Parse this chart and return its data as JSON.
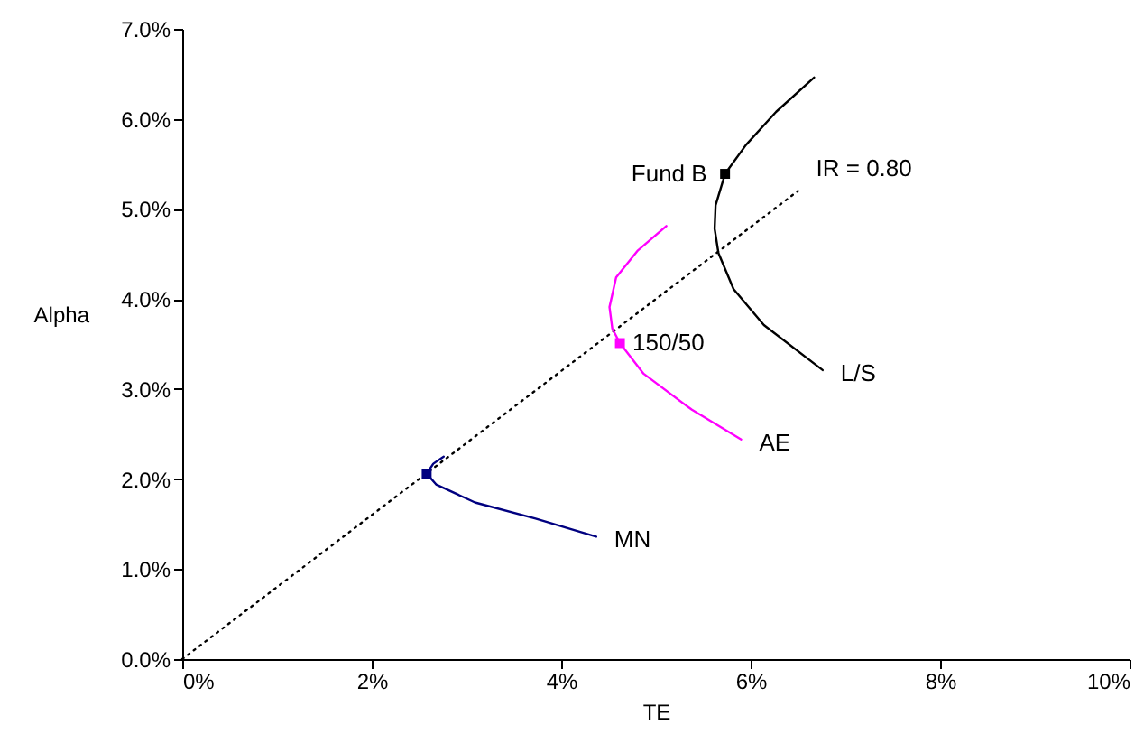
{
  "chart_data": {
    "type": "line",
    "xlabel": "TE",
    "ylabel": "Alpha",
    "xlim": [
      0,
      10
    ],
    "ylim": [
      0,
      7
    ],
    "xticks": [
      {
        "value": 0,
        "label": "0%"
      },
      {
        "value": 2,
        "label": "2%"
      },
      {
        "value": 4,
        "label": "4%"
      },
      {
        "value": 6,
        "label": "6%"
      },
      {
        "value": 8,
        "label": "8%"
      },
      {
        "value": 10,
        "label": "10%"
      }
    ],
    "yticks": [
      {
        "value": 0,
        "label": "0.0%"
      },
      {
        "value": 1,
        "label": "1.0%"
      },
      {
        "value": 2,
        "label": "2.0%"
      },
      {
        "value": 3,
        "label": "3.0%"
      },
      {
        "value": 4,
        "label": "4.0%"
      },
      {
        "value": 5,
        "label": "5.0%"
      },
      {
        "value": 6,
        "label": "6.0%"
      },
      {
        "value": 7,
        "label": "7.0%"
      }
    ],
    "grid": false,
    "marker": "none",
    "series": [
      {
        "name": "IR = 0.80",
        "line_style": "dotted",
        "color": "#000000",
        "x": [
          0,
          6.5
        ],
        "values": [
          0,
          5.2
        ]
      },
      {
        "name": "L/S",
        "line_style": "solid",
        "color": "#000000",
        "x": [
          6.67,
          6.27,
          5.95,
          5.73,
          5.63,
          5.62,
          5.66,
          5.82,
          6.14,
          6.76
        ],
        "values": [
          6.46,
          6.08,
          5.71,
          5.39,
          5.04,
          4.78,
          4.51,
          4.11,
          3.71,
          3.21
        ]
      },
      {
        "name": "AE",
        "line_style": "solid",
        "color": "#ff00ff",
        "x": [
          5.11,
          4.81,
          4.58,
          4.51,
          4.54,
          4.62,
          4.87,
          5.38,
          5.9
        ],
        "values": [
          4.81,
          4.54,
          4.24,
          3.91,
          3.67,
          3.51,
          3.17,
          2.77,
          2.44
        ]
      },
      {
        "name": "MN",
        "line_style": "solid",
        "color": "#000080",
        "x": [
          2.76,
          2.65,
          2.58,
          2.68,
          3.09,
          3.73,
          4.37
        ],
        "values": [
          2.25,
          2.17,
          2.06,
          1.94,
          1.74,
          1.56,
          1.36
        ]
      },
      {
        "type": "scatter",
        "marker": "square",
        "color": "#000000",
        "x": [
          5.73
        ],
        "values": [
          5.39
        ]
      },
      {
        "type": "scatter",
        "marker": "square",
        "color": "#ff00ff",
        "x": [
          4.62
        ],
        "values": [
          3.51
        ]
      },
      {
        "type": "scatter",
        "marker": "square",
        "color": "#000080",
        "x": [
          2.58
        ],
        "values": [
          2.06
        ]
      }
    ],
    "annotations": [
      {
        "text": "Fund B",
        "x": 5.73,
        "y": 5.39
      },
      {
        "text": "150/50",
        "x": 4.62,
        "y": 3.51
      }
    ]
  }
}
